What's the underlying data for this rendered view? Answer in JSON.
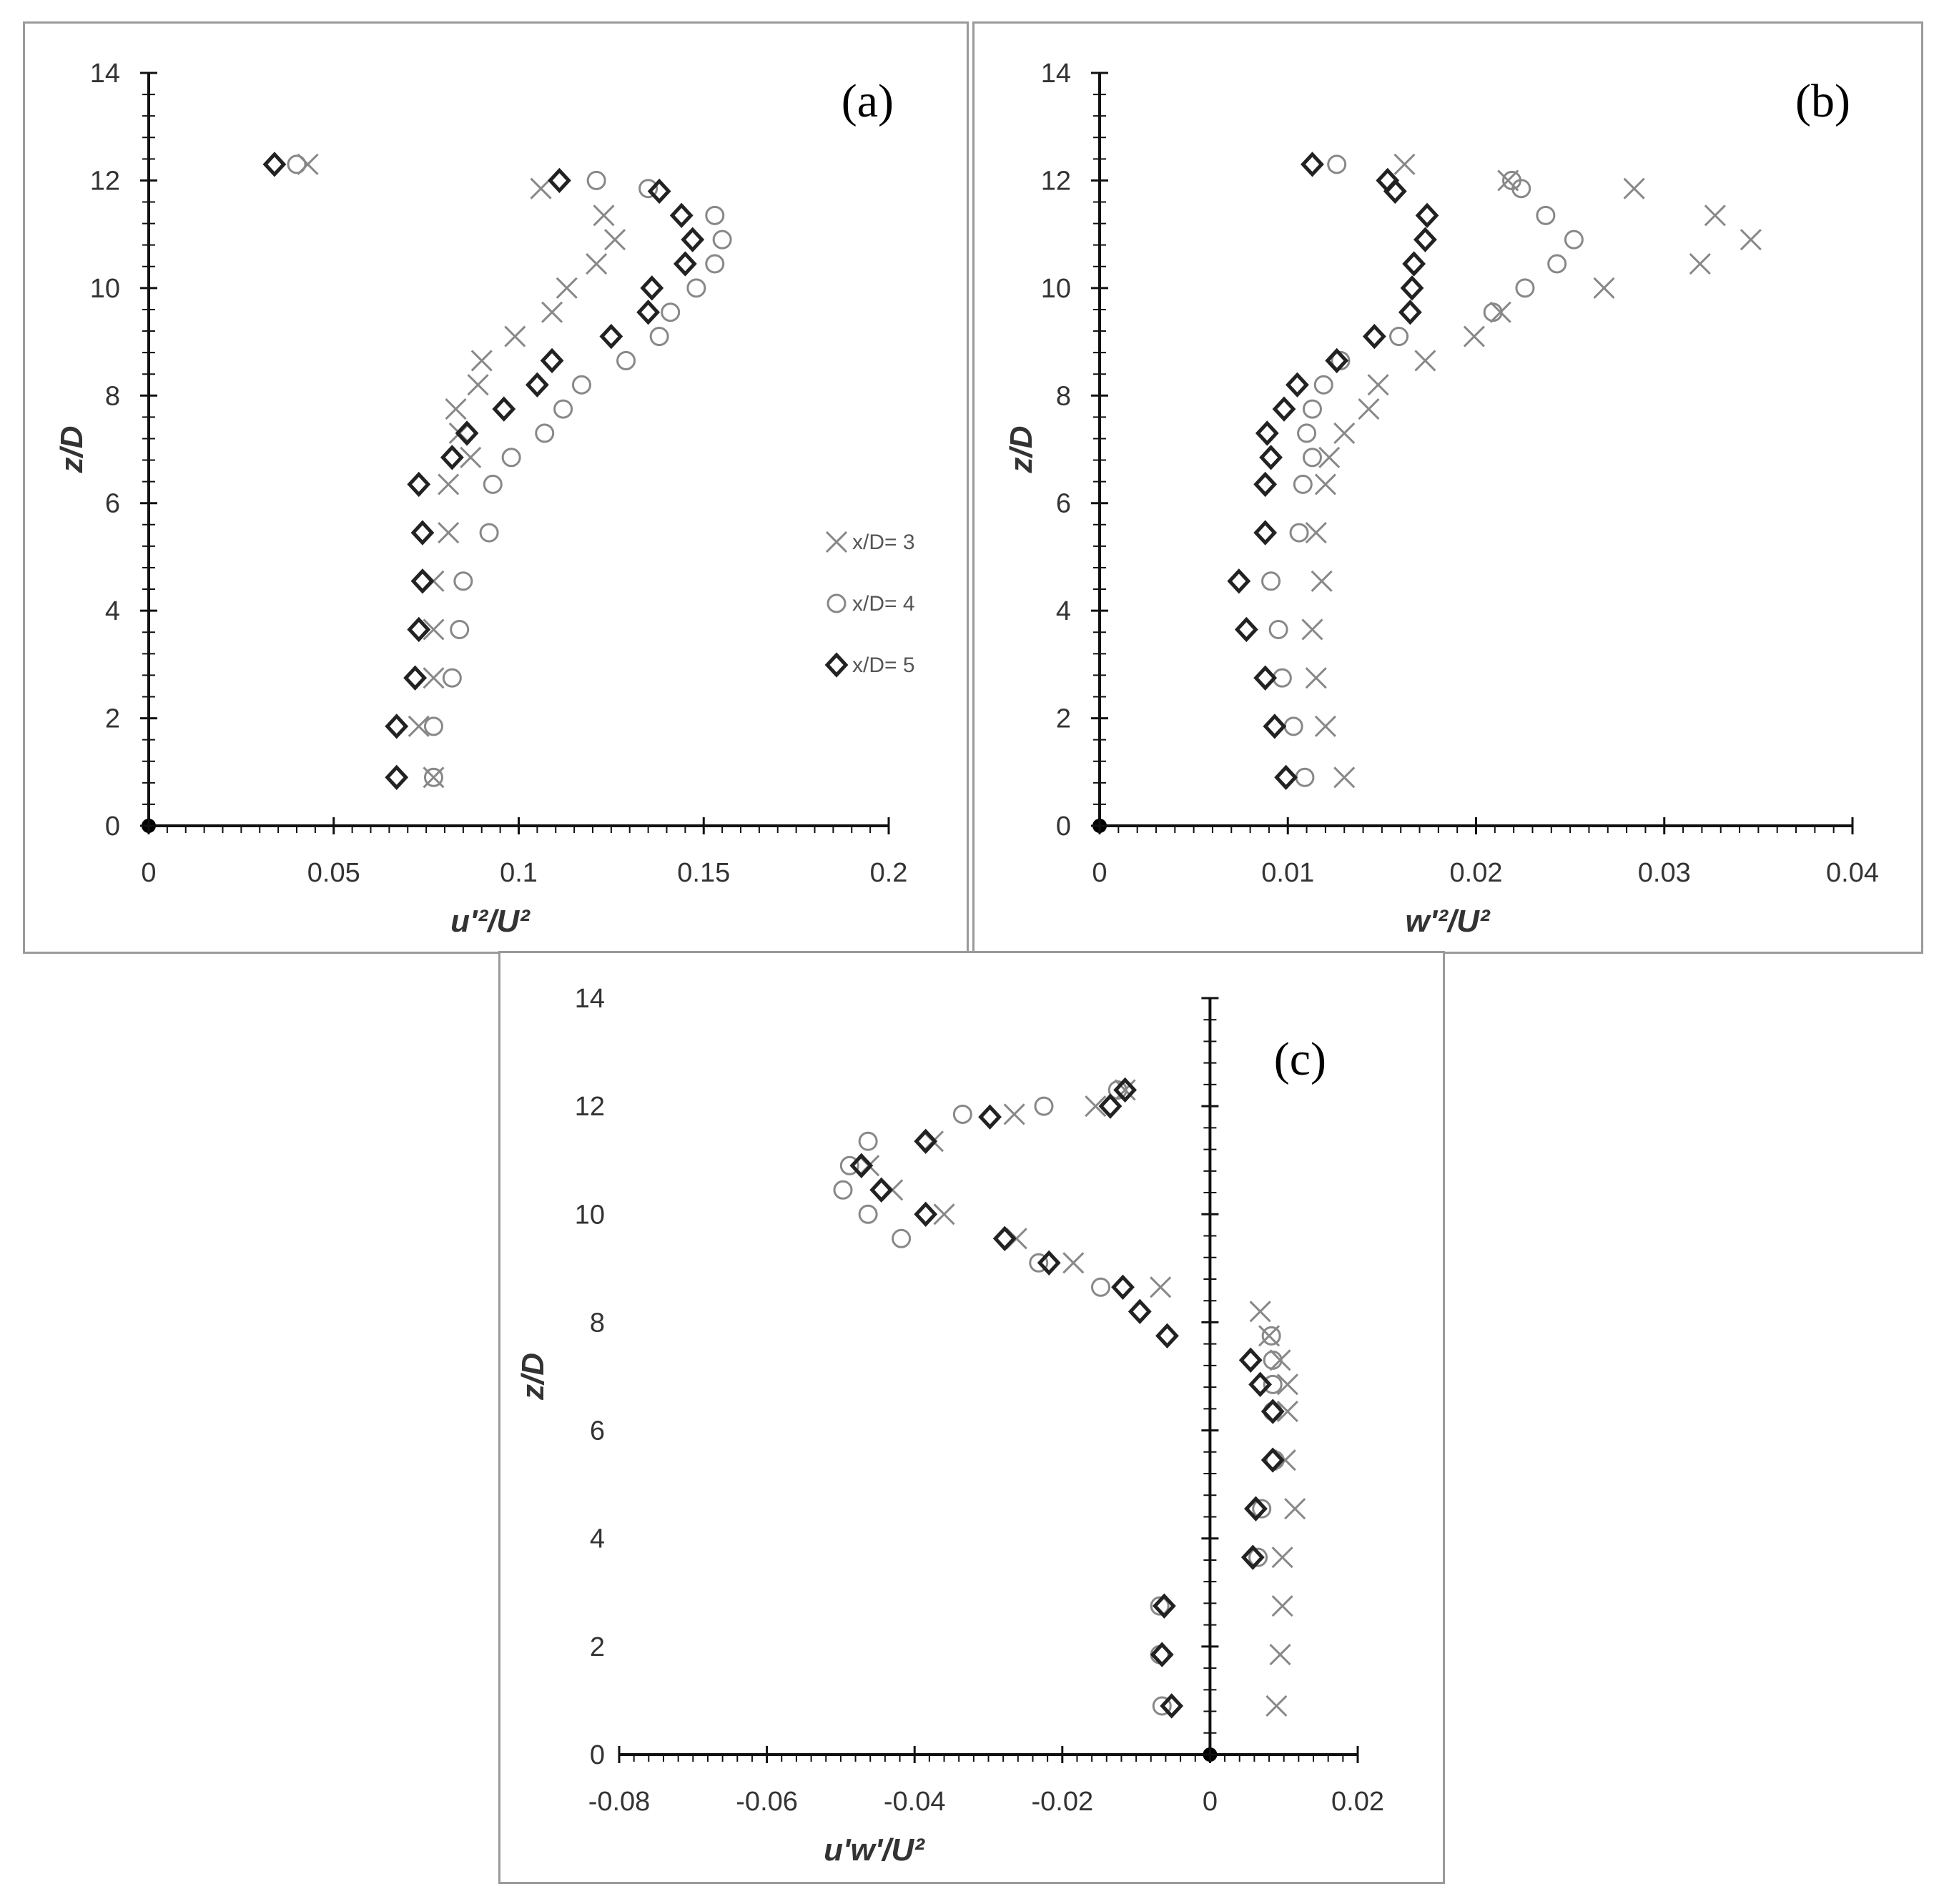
{
  "chart_data": [
    {
      "type": "scatter",
      "panel_label": "(a)",
      "xlabel": "u'²/U²",
      "ylabel": "z/D",
      "xlim": [
        0,
        0.2
      ],
      "ylim": [
        0,
        14
      ],
      "xticks": [
        "0",
        "0.05",
        "0.1",
        "0.15",
        "0.2"
      ],
      "yticks": [
        "0",
        "2",
        "4",
        "6",
        "8",
        "10",
        "12",
        "14"
      ],
      "legend_position": "right",
      "series": [
        {
          "name": "x/D= 3",
          "marker": "x",
          "color": "#888888",
          "points": [
            [
              0.077,
              0.9
            ],
            [
              0.073,
              1.85
            ],
            [
              0.077,
              2.75
            ],
            [
              0.077,
              3.65
            ],
            [
              0.077,
              4.55
            ],
            [
              0.081,
              5.45
            ],
            [
              0.081,
              6.35
            ],
            [
              0.087,
              6.85
            ],
            [
              0.084,
              7.3
            ],
            [
              0.083,
              7.75
            ],
            [
              0.089,
              8.2
            ],
            [
              0.09,
              8.65
            ],
            [
              0.099,
              9.1
            ],
            [
              0.109,
              9.55
            ],
            [
              0.113,
              10.0
            ],
            [
              0.121,
              10.45
            ],
            [
              0.126,
              10.9
            ],
            [
              0.123,
              11.35
            ],
            [
              0.106,
              11.85
            ],
            [
              0.043,
              12.3
            ]
          ]
        },
        {
          "name": "x/D= 4",
          "marker": "o",
          "color": "#888888",
          "points": [
            [
              0.077,
              0.9
            ],
            [
              0.077,
              1.85
            ],
            [
              0.082,
              2.75
            ],
            [
              0.084,
              3.65
            ],
            [
              0.085,
              4.55
            ],
            [
              0.092,
              5.45
            ],
            [
              0.093,
              6.35
            ],
            [
              0.098,
              6.85
            ],
            [
              0.107,
              7.3
            ],
            [
              0.112,
              7.75
            ],
            [
              0.117,
              8.2
            ],
            [
              0.129,
              8.65
            ],
            [
              0.138,
              9.1
            ],
            [
              0.141,
              9.55
            ],
            [
              0.148,
              10.0
            ],
            [
              0.153,
              10.45
            ],
            [
              0.155,
              10.9
            ],
            [
              0.153,
              11.35
            ],
            [
              0.135,
              11.85
            ],
            [
              0.121,
              12.0
            ],
            [
              0.04,
              12.3
            ]
          ]
        },
        {
          "name": "x/D= 5",
          "marker": "d",
          "color": "#222222",
          "points": [
            [
              0.067,
              0.9
            ],
            [
              0.067,
              1.85
            ],
            [
              0.072,
              2.75
            ],
            [
              0.073,
              3.65
            ],
            [
              0.074,
              4.55
            ],
            [
              0.074,
              5.45
            ],
            [
              0.073,
              6.35
            ],
            [
              0.082,
              6.85
            ],
            [
              0.086,
              7.3
            ],
            [
              0.096,
              7.75
            ],
            [
              0.105,
              8.2
            ],
            [
              0.109,
              8.65
            ],
            [
              0.125,
              9.1
            ],
            [
              0.135,
              9.55
            ],
            [
              0.136,
              10.0
            ],
            [
              0.145,
              10.45
            ],
            [
              0.147,
              10.9
            ],
            [
              0.144,
              11.35
            ],
            [
              0.138,
              11.8
            ],
            [
              0.111,
              12.0
            ],
            [
              0.034,
              12.3
            ]
          ]
        }
      ]
    },
    {
      "type": "scatter",
      "panel_label": "(b)",
      "xlabel": "w'²/U²",
      "ylabel": "z/D",
      "xlim": [
        0,
        0.04
      ],
      "ylim": [
        0,
        14
      ],
      "xticks": [
        "0",
        "0.01",
        "0.02",
        "0.03",
        "0.04"
      ],
      "yticks": [
        "0",
        "2",
        "4",
        "6",
        "8",
        "10",
        "12",
        "14"
      ],
      "series": [
        {
          "name": "x/D= 3",
          "marker": "x",
          "color": "#888888",
          "points": [
            [
              0.013,
              0.9
            ],
            [
              0.012,
              1.85
            ],
            [
              0.0115,
              2.75
            ],
            [
              0.0113,
              3.65
            ],
            [
              0.0118,
              4.55
            ],
            [
              0.0115,
              5.45
            ],
            [
              0.012,
              6.35
            ],
            [
              0.0122,
              6.85
            ],
            [
              0.013,
              7.3
            ],
            [
              0.0143,
              7.75
            ],
            [
              0.0148,
              8.2
            ],
            [
              0.0173,
              8.65
            ],
            [
              0.0199,
              9.1
            ],
            [
              0.0213,
              9.55
            ],
            [
              0.0268,
              10.0
            ],
            [
              0.0319,
              10.45
            ],
            [
              0.0346,
              10.9
            ],
            [
              0.0327,
              11.35
            ],
            [
              0.0284,
              11.85
            ],
            [
              0.0217,
              12.0
            ],
            [
              0.0162,
              12.3
            ]
          ]
        },
        {
          "name": "x/D= 4",
          "marker": "o",
          "color": "#888888",
          "points": [
            [
              0.0109,
              0.9
            ],
            [
              0.0103,
              1.85
            ],
            [
              0.0097,
              2.75
            ],
            [
              0.0095,
              3.65
            ],
            [
              0.0091,
              4.55
            ],
            [
              0.0106,
              5.45
            ],
            [
              0.0108,
              6.35
            ],
            [
              0.0113,
              6.85
            ],
            [
              0.011,
              7.3
            ],
            [
              0.0113,
              7.75
            ],
            [
              0.0119,
              8.2
            ],
            [
              0.0128,
              8.65
            ],
            [
              0.0159,
              9.1
            ],
            [
              0.0209,
              9.55
            ],
            [
              0.0226,
              10.0
            ],
            [
              0.0243,
              10.45
            ],
            [
              0.0252,
              10.9
            ],
            [
              0.0237,
              11.35
            ],
            [
              0.0224,
              11.85
            ],
            [
              0.0219,
              12.0
            ],
            [
              0.0126,
              12.3
            ]
          ]
        },
        {
          "name": "x/D= 5",
          "marker": "d",
          "color": "#222222",
          "points": [
            [
              0.0099,
              0.9
            ],
            [
              0.0093,
              1.85
            ],
            [
              0.0088,
              2.75
            ],
            [
              0.0078,
              3.65
            ],
            [
              0.0074,
              4.55
            ],
            [
              0.0088,
              5.45
            ],
            [
              0.0088,
              6.35
            ],
            [
              0.0091,
              6.85
            ],
            [
              0.0089,
              7.3
            ],
            [
              0.0098,
              7.75
            ],
            [
              0.0105,
              8.2
            ],
            [
              0.0126,
              8.65
            ],
            [
              0.0146,
              9.1
            ],
            [
              0.0165,
              9.55
            ],
            [
              0.0166,
              10.0
            ],
            [
              0.0167,
              10.45
            ],
            [
              0.0173,
              10.9
            ],
            [
              0.0174,
              11.35
            ],
            [
              0.0157,
              11.8
            ],
            [
              0.0153,
              12.0
            ],
            [
              0.0113,
              12.3
            ]
          ]
        }
      ]
    },
    {
      "type": "scatter",
      "panel_label": "(c)",
      "xlabel": "u'w'/U²",
      "ylabel": "z/D",
      "xlim": [
        -0.08,
        0.02
      ],
      "ylim": [
        0,
        14
      ],
      "xticks": [
        "-0.08",
        "-0.06",
        "-0.04",
        "-0.02",
        "0",
        "0.02"
      ],
      "yticks": [
        "0",
        "2",
        "4",
        "6",
        "8",
        "10",
        "12",
        "14"
      ],
      "series": [
        {
          "name": "x/D= 3",
          "marker": "x",
          "color": "#888888",
          "points": [
            [
              0.009,
              0.9
            ],
            [
              0.0095,
              1.85
            ],
            [
              0.0098,
              2.75
            ],
            [
              0.0098,
              3.65
            ],
            [
              0.0115,
              4.55
            ],
            [
              0.0102,
              5.45
            ],
            [
              0.0105,
              6.35
            ],
            [
              0.0105,
              6.85
            ],
            [
              0.0095,
              7.3
            ],
            [
              0.008,
              7.75
            ],
            [
              0.0068,
              8.2
            ],
            [
              -0.0067,
              8.65
            ],
            [
              -0.0185,
              9.1
            ],
            [
              -0.0262,
              9.55
            ],
            [
              -0.036,
              10.0
            ],
            [
              -0.043,
              10.45
            ],
            [
              -0.0462,
              10.9
            ],
            [
              -0.0375,
              11.35
            ],
            [
              -0.0265,
              11.85
            ],
            [
              -0.0155,
              12.0
            ],
            [
              -0.0115,
              12.3
            ]
          ]
        },
        {
          "name": "x/D= 4",
          "marker": "o",
          "color": "#888888",
          "points": [
            [
              -0.0065,
              0.9
            ],
            [
              -0.0068,
              1.85
            ],
            [
              -0.0068,
              2.75
            ],
            [
              0.0065,
              3.65
            ],
            [
              0.007,
              4.55
            ],
            [
              0.0088,
              5.45
            ],
            [
              0.0085,
              6.35
            ],
            [
              0.0085,
              6.85
            ],
            [
              0.0085,
              7.3
            ],
            [
              0.0083,
              7.75
            ],
            [
              -0.0148,
              8.65
            ],
            [
              -0.0232,
              9.1
            ],
            [
              -0.0418,
              9.55
            ],
            [
              -0.0463,
              10.0
            ],
            [
              -0.0497,
              10.45
            ],
            [
              -0.0488,
              10.9
            ],
            [
              -0.0463,
              11.35
            ],
            [
              -0.0335,
              11.85
            ],
            [
              -0.0225,
              12.0
            ],
            [
              -0.0125,
              12.3
            ]
          ]
        },
        {
          "name": "x/D= 5",
          "marker": "d",
          "color": "#222222",
          "points": [
            [
              -0.0052,
              0.9
            ],
            [
              -0.0065,
              1.85
            ],
            [
              -0.0062,
              2.75
            ],
            [
              0.0058,
              3.65
            ],
            [
              0.0062,
              4.55
            ],
            [
              0.0085,
              5.45
            ],
            [
              0.0085,
              6.35
            ],
            [
              0.0068,
              6.85
            ],
            [
              0.0055,
              7.3
            ],
            [
              -0.0058,
              7.75
            ],
            [
              -0.0095,
              8.2
            ],
            [
              -0.0118,
              8.65
            ],
            [
              -0.0218,
              9.1
            ],
            [
              -0.0278,
              9.55
            ],
            [
              -0.0385,
              10.0
            ],
            [
              -0.0445,
              10.45
            ],
            [
              -0.0472,
              10.9
            ],
            [
              -0.0385,
              11.35
            ],
            [
              -0.0298,
              11.8
            ],
            [
              -0.0135,
              12.0
            ],
            [
              -0.0115,
              12.3
            ]
          ]
        }
      ]
    }
  ]
}
